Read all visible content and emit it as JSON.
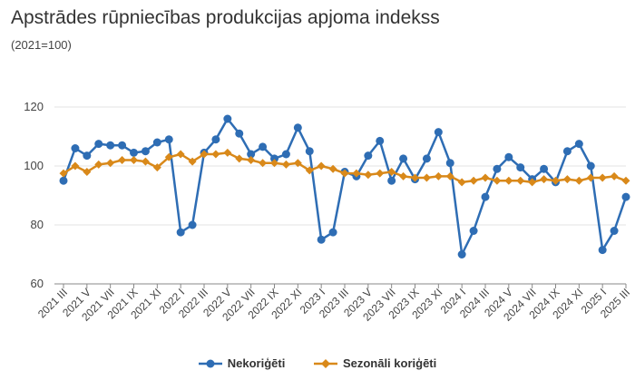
{
  "chart_data": {
    "type": "line",
    "title": "Apstrādes rūpniecības produkcijas apjoma indekss",
    "subtitle": "(2021=100)",
    "xlabel": "",
    "ylabel": "",
    "ylim": [
      60,
      120
    ],
    "yticks": [
      60,
      80,
      100,
      120
    ],
    "grid": true,
    "legend_position": "bottom-center",
    "categories": [
      "2021 III",
      "2021 IV",
      "2021 V",
      "2021 VI",
      "2021 VII",
      "2021 VIII",
      "2021 IX",
      "2021 X",
      "2021 XI",
      "2021 XII",
      "2022 I",
      "2022 II",
      "2022 III",
      "2022 IV",
      "2022 V",
      "2022 VI",
      "2022 VII",
      "2022 VIII",
      "2022 IX",
      "2022 X",
      "2022 XI",
      "2022 XII",
      "2023 I",
      "2023 II",
      "2023 III",
      "2023 IV",
      "2023 V",
      "2023 VI",
      "2023 VII",
      "2023 VIII",
      "2023 IX",
      "2023 X",
      "2023 XI",
      "2023 XII",
      "2024 I",
      "2024 II",
      "2024 III",
      "2024 IV",
      "2024 V",
      "2024 VI",
      "2024 VII",
      "2024 VIII",
      "2024 IX",
      "2024 X",
      "2024 XI",
      "2024 XII",
      "2025 I",
      "2025 II",
      "2025 III"
    ],
    "tick_labels": [
      "2021 III",
      "2021 V",
      "2021 VII",
      "2021 IX",
      "2021 XI",
      "2022 I",
      "2022 III",
      "2022 V",
      "2022 VII",
      "2022 IX",
      "2022 XI",
      "2023 I",
      "2023 III",
      "2023 V",
      "2023 VII",
      "2023 IX",
      "2023 XI",
      "2024 I",
      "2024 III",
      "2024 V",
      "2024 VII",
      "2024 IX",
      "2024 XI",
      "2025 I",
      "2025 III"
    ],
    "series": [
      {
        "name": "Nekoriģēti",
        "color": "#2e6db4",
        "marker": "circle",
        "values": [
          95,
          106,
          103.5,
          107.5,
          107,
          107,
          104.5,
          105,
          108,
          109,
          77.5,
          80,
          104.5,
          109,
          116,
          111,
          104,
          106.5,
          102.5,
          104,
          113,
          105,
          75,
          77.5,
          98,
          96.5,
          103.5,
          108.5,
          95,
          102.5,
          95.5,
          102.5,
          111.5,
          101,
          70,
          78,
          89.5,
          99,
          103,
          99.5,
          95.5,
          99,
          94.5,
          105,
          107.5,
          100,
          71.5,
          78,
          89.5
        ]
      },
      {
        "name": "Sezonāli koriģēti",
        "color": "#d9891a",
        "marker": "diamond",
        "values": [
          97.5,
          100,
          98,
          100.5,
          101,
          102,
          102,
          101.5,
          99.5,
          103,
          104,
          101.5,
          104,
          104,
          104.5,
          102.5,
          102,
          101,
          101,
          100.5,
          101,
          98.5,
          100,
          99,
          97.5,
          97.5,
          97,
          97.5,
          98,
          96.5,
          96,
          96,
          96.5,
          96.5,
          94.5,
          95,
          96,
          95,
          95,
          95,
          94.5,
          95.5,
          95,
          95.5,
          95,
          96,
          96,
          96.5,
          95
        ]
      }
    ]
  }
}
